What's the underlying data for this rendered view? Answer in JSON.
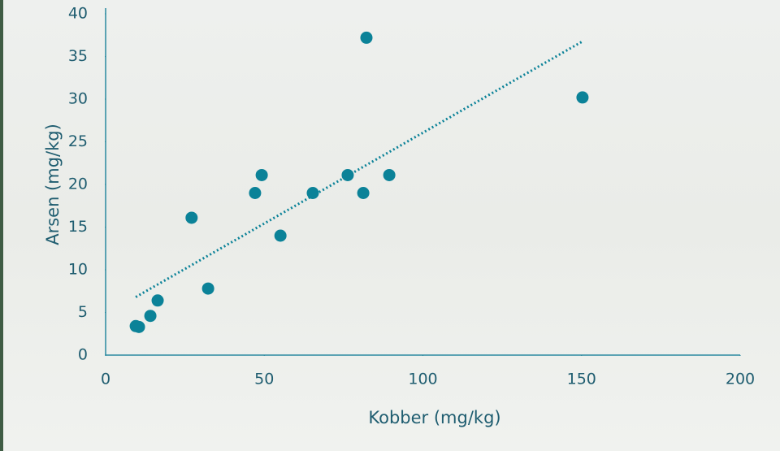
{
  "chart_data": {
    "type": "scatter",
    "x_label": "Kobber (mg/kg)",
    "y_label": "Arsen (mg/kg)",
    "series": [
      {
        "color": "#0b8298",
        "x": [
          9.5,
          10.5,
          14.1,
          16.4,
          27.1,
          32.3,
          47.1,
          49.2,
          55.1,
          65.3,
          76.3,
          81.2,
          82.2,
          89.4,
          150.3
        ],
        "values": [
          3.4,
          3.3,
          4.6,
          6.4,
          16.1,
          7.8,
          19,
          21.1,
          14,
          19,
          21.1,
          19,
          37.2,
          21.1,
          30.2
        ]
      }
    ],
    "trendline": true,
    "xlim": [
      0,
      200
    ],
    "xticks": [
      0,
      50,
      100,
      150,
      200
    ],
    "ylim": [
      0,
      40
    ],
    "yticks": [
      0,
      5,
      10,
      15,
      20,
      25,
      30,
      35,
      40
    ]
  }
}
